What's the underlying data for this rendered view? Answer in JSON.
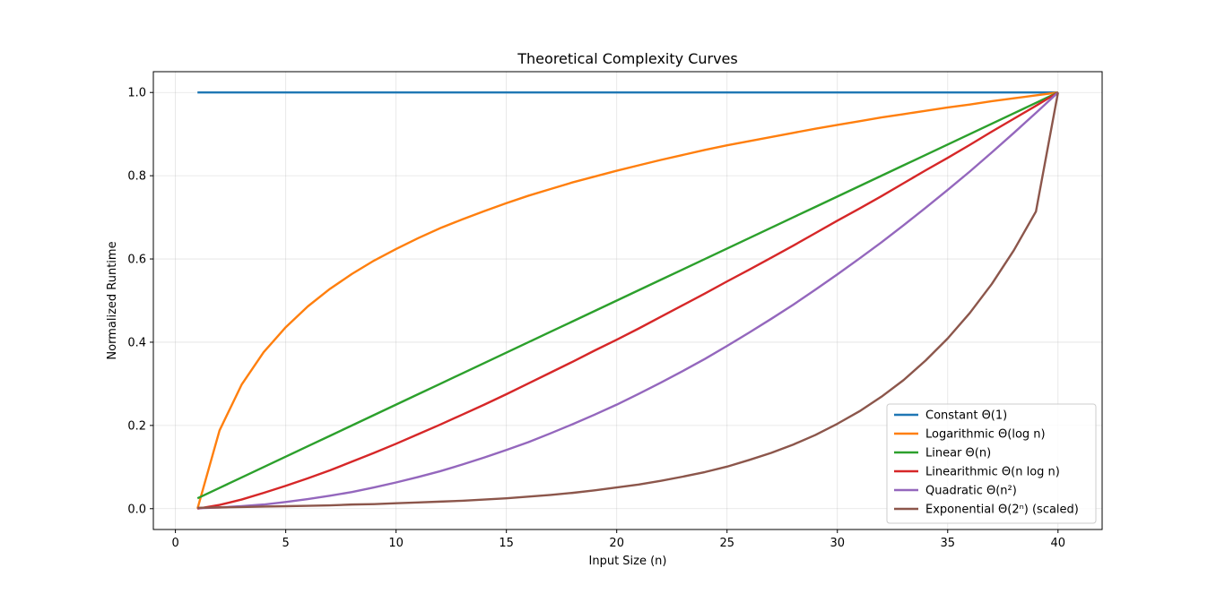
{
  "chart_data": {
    "type": "line",
    "title": "Theoretical Complexity Curves",
    "xlabel": "Input Size (n)",
    "ylabel": "Normalized Runtime",
    "xlim": [
      -1,
      42
    ],
    "ylim": [
      -0.05,
      1.05
    ],
    "xticks": [
      0,
      5,
      10,
      15,
      20,
      25,
      30,
      35,
      40
    ],
    "xtick_labels": [
      "0",
      "5",
      "10",
      "15",
      "20",
      "25",
      "30",
      "35",
      "40"
    ],
    "yticks": [
      0.0,
      0.2,
      0.4,
      0.6,
      0.8,
      1.0
    ],
    "ytick_labels": [
      "0.0",
      "0.2",
      "0.4",
      "0.6",
      "0.8",
      "1.0"
    ],
    "grid": true,
    "legend_position": "lower-right",
    "x": [
      1,
      2,
      3,
      4,
      5,
      6,
      7,
      8,
      9,
      10,
      11,
      12,
      13,
      14,
      15,
      16,
      17,
      18,
      19,
      20,
      21,
      22,
      23,
      24,
      25,
      26,
      27,
      28,
      29,
      30,
      31,
      32,
      33,
      34,
      35,
      36,
      37,
      38,
      39,
      40
    ],
    "series": [
      {
        "name": "Constant Θ(1)",
        "color": "#1f77b4",
        "values": [
          1,
          1,
          1,
          1,
          1,
          1,
          1,
          1,
          1,
          1,
          1,
          1,
          1,
          1,
          1,
          1,
          1,
          1,
          1,
          1,
          1,
          1,
          1,
          1,
          1,
          1,
          1,
          1,
          1,
          1,
          1,
          1,
          1,
          1,
          1,
          1,
          1,
          1,
          1,
          1
        ]
      },
      {
        "name": "Logarithmic Θ(log n)",
        "color": "#ff7f0e",
        "values": [
          0.0,
          0.188,
          0.298,
          0.376,
          0.436,
          0.486,
          0.528,
          0.564,
          0.596,
          0.624,
          0.65,
          0.674,
          0.695,
          0.715,
          0.734,
          0.752,
          0.768,
          0.784,
          0.798,
          0.812,
          0.825,
          0.838,
          0.85,
          0.862,
          0.873,
          0.883,
          0.893,
          0.903,
          0.913,
          0.922,
          0.931,
          0.94,
          0.948,
          0.956,
          0.964,
          0.971,
          0.979,
          0.986,
          0.993,
          1.0
        ]
      },
      {
        "name": "Linear Θ(n)",
        "color": "#2ca02c",
        "values": [
          0.025,
          0.05,
          0.075,
          0.1,
          0.125,
          0.15,
          0.175,
          0.2,
          0.225,
          0.25,
          0.275,
          0.3,
          0.325,
          0.35,
          0.375,
          0.4,
          0.425,
          0.45,
          0.475,
          0.5,
          0.525,
          0.55,
          0.575,
          0.6,
          0.625,
          0.65,
          0.675,
          0.7,
          0.725,
          0.75,
          0.775,
          0.8,
          0.825,
          0.85,
          0.875,
          0.9,
          0.925,
          0.95,
          0.975,
          1.0
        ]
      },
      {
        "name": "Linearithmic Θ(n log n)",
        "color": "#d62728",
        "values": [
          0.0,
          0.009,
          0.022,
          0.038,
          0.055,
          0.073,
          0.092,
          0.113,
          0.134,
          0.156,
          0.179,
          0.202,
          0.226,
          0.25,
          0.275,
          0.301,
          0.327,
          0.353,
          0.38,
          0.406,
          0.433,
          0.461,
          0.489,
          0.517,
          0.546,
          0.574,
          0.603,
          0.632,
          0.662,
          0.692,
          0.721,
          0.751,
          0.782,
          0.813,
          0.843,
          0.874,
          0.906,
          0.937,
          0.968,
          1.0
        ]
      },
      {
        "name": "Quadratic Θ(n²)",
        "color": "#9467bd",
        "values": [
          0.001,
          0.003,
          0.006,
          0.01,
          0.016,
          0.023,
          0.031,
          0.04,
          0.051,
          0.063,
          0.076,
          0.09,
          0.106,
          0.123,
          0.141,
          0.16,
          0.181,
          0.203,
          0.226,
          0.25,
          0.276,
          0.303,
          0.331,
          0.36,
          0.391,
          0.423,
          0.456,
          0.49,
          0.526,
          0.563,
          0.601,
          0.64,
          0.681,
          0.723,
          0.766,
          0.81,
          0.856,
          0.903,
          0.951,
          1.0
        ]
      },
      {
        "name": "Exponential Θ(2ⁿ) (scaled)",
        "color": "#8c564b",
        "values": [
          0.002,
          0.003,
          0.004,
          0.005,
          0.006,
          0.007,
          0.008,
          0.01,
          0.011,
          0.013,
          0.015,
          0.017,
          0.019,
          0.022,
          0.025,
          0.029,
          0.033,
          0.038,
          0.044,
          0.051,
          0.058,
          0.067,
          0.077,
          0.088,
          0.101,
          0.117,
          0.134,
          0.154,
          0.177,
          0.204,
          0.234,
          0.269,
          0.309,
          0.356,
          0.409,
          0.47,
          0.54,
          0.621,
          0.714,
          1.0
        ]
      }
    ]
  }
}
